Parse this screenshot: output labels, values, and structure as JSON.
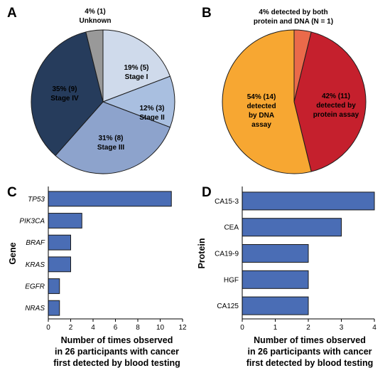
{
  "chart_data": [
    {
      "panel": "A",
      "type": "pie",
      "slices": [
        {
          "lines": [
            "19% (5)",
            "Stage I"
          ],
          "value": 5,
          "percent": 19,
          "color": "#cfdaeb"
        },
        {
          "lines": [
            "12% (3)",
            "Stage II"
          ],
          "value": 3,
          "percent": 12,
          "color": "#a9bfe0"
        },
        {
          "lines": [
            "31% (8)",
            "Stage III"
          ],
          "value": 8,
          "percent": 31,
          "color": "#8da3cc"
        },
        {
          "lines": [
            "35% (9)",
            "Stage IV"
          ],
          "value": 9,
          "percent": 35,
          "color": "#263c5c"
        },
        {
          "lines": [
            "4% (1)",
            "Unknown"
          ],
          "value": 1,
          "percent": 4,
          "color": "#999999"
        }
      ]
    },
    {
      "panel": "B",
      "type": "pie",
      "slices": [
        {
          "lines": [
            "4% detected by both",
            "protein and DNA (N = 1)"
          ],
          "value": 1,
          "percent": 4,
          "color": "#ea6a4a"
        },
        {
          "lines": [
            "42% (11)",
            "detected by",
            "protein assay"
          ],
          "value": 11,
          "percent": 42,
          "color": "#c5202d"
        },
        {
          "lines": [
            "54% (14)",
            "detected",
            "by DNA",
            "assay"
          ],
          "value": 14,
          "percent": 54,
          "color": "#f7a732"
        }
      ]
    },
    {
      "panel": "C",
      "type": "bar",
      "orientation": "horizontal",
      "categories": [
        "TP53",
        "PIK3CA",
        "BRAF",
        "KRAS",
        "EGFR",
        "NRAS"
      ],
      "values": [
        11,
        3,
        2,
        2,
        1,
        1
      ],
      "ylabel": "Gene",
      "xlabel_lines": [
        "Number of times observed",
        "in 26 participants with cancer",
        "first detected by blood testing"
      ],
      "xlim": [
        0,
        12
      ],
      "xticks": [
        0,
        2,
        4,
        6,
        8,
        10,
        12
      ],
      "bar_color": "#4a6db5",
      "grid": false
    },
    {
      "panel": "D",
      "type": "bar",
      "orientation": "horizontal",
      "categories": [
        "CA15-3",
        "CEA",
        "CA19-9",
        "HGF",
        "CA125"
      ],
      "values": [
        4,
        3,
        2,
        2,
        2
      ],
      "ylabel": "Protein",
      "xlabel_lines": [
        "Number of times observed",
        "in 26 participants with cancer",
        "first detected by blood testing"
      ],
      "xlim": [
        0,
        4
      ],
      "xticks": [
        0,
        1,
        2,
        3,
        4
      ],
      "bar_color": "#4a6db5",
      "grid": false
    }
  ]
}
